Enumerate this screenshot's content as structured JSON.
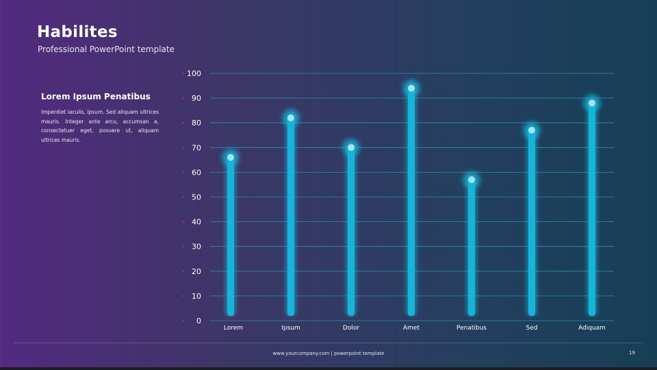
{
  "slide": {
    "title": "Habilites",
    "subtitle": "Professional PowerPoint template",
    "side_heading": "Lorem Ipsum Penatibus",
    "side_body": "Imperdiet iaculis, ipsum. Sed aliquam ultrices mauris. Integer ante arcu, accumsan a, consectetuer eget, posuere ut, aliquam ultrices mauris.",
    "footer_text": "www.yourcompany.com  | powerpoint  template",
    "page_number": "19"
  },
  "colors": {
    "bar": "#17b4d9",
    "grid": "#2f8fa6",
    "tick_marker": "#c0283c",
    "dot": "#9fe6f6"
  },
  "chart_data": {
    "type": "bar",
    "title": "",
    "xlabel": "",
    "ylabel": "",
    "categories": [
      "Lorem",
      "Ipsum",
      "Dolor",
      "Amet",
      "Penatibus",
      "Sed",
      "Adiquam"
    ],
    "values": [
      66,
      82,
      70,
      94,
      57,
      77,
      88
    ],
    "ylim": [
      0,
      100
    ],
    "yticks": [
      0,
      10,
      20,
      30,
      40,
      50,
      60,
      70,
      80,
      90,
      100
    ],
    "grid": true,
    "legend": "none"
  }
}
